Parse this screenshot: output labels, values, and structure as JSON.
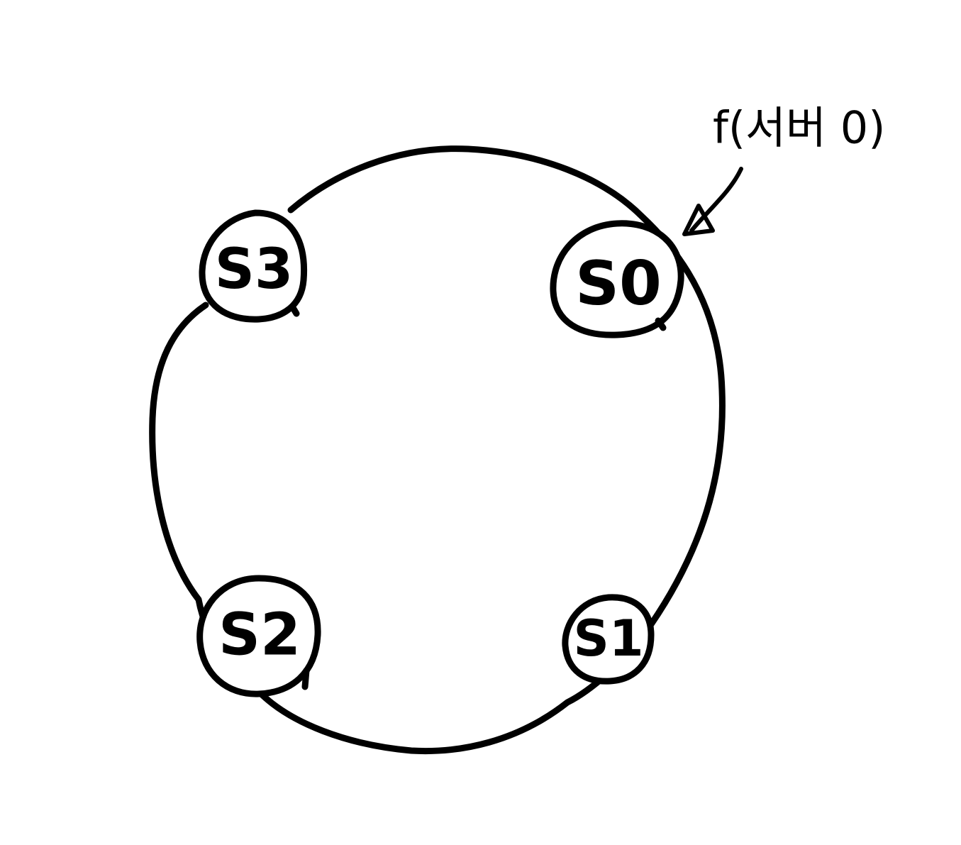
{
  "diagram": {
    "type": "consistent-hash-ring",
    "stroke_color": "#000000",
    "background_color": "#ffffff",
    "nodes": [
      {
        "id": "s0",
        "label": "S0"
      },
      {
        "id": "s1",
        "label": "S1"
      },
      {
        "id": "s2",
        "label": "S2"
      },
      {
        "id": "s3",
        "label": "S3"
      }
    ],
    "annotation": {
      "text": "f(서버 0)",
      "points_to": "s0"
    }
  }
}
